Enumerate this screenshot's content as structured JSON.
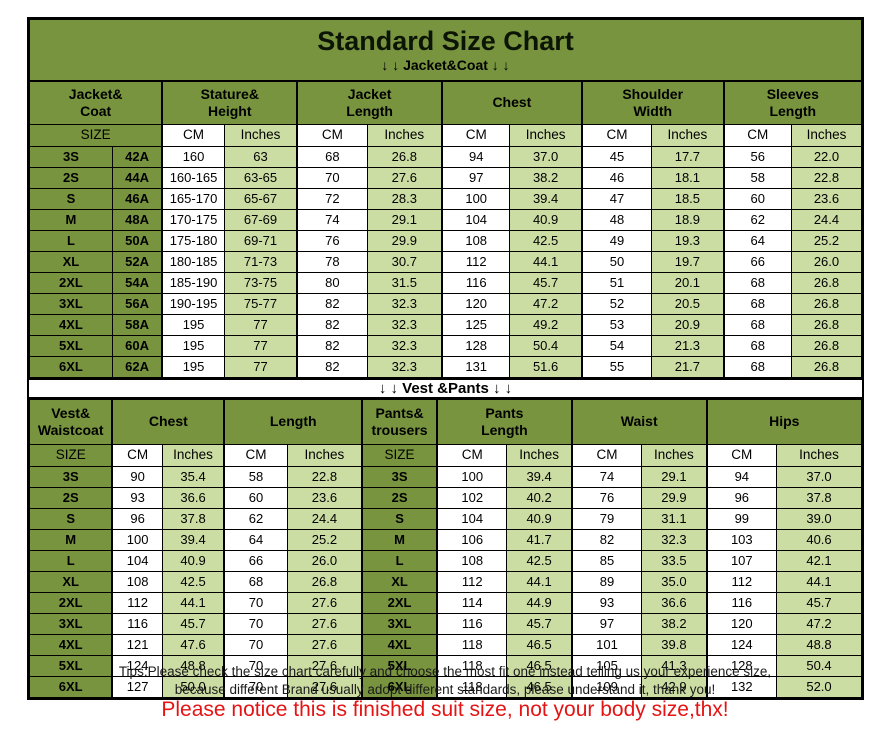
{
  "title": "Standard Size Chart",
  "jacket_section_label": "↓ ↓  Jacket&Coat ↓ ↓",
  "vest_section_label": "↓ ↓  Vest &Pants ↓ ↓",
  "colors": {
    "header_green": "#78943e",
    "light_green": "#ccdda4",
    "red_note": "#e51414",
    "border": "#000000"
  },
  "jacket_table": {
    "column_groups": [
      "Jacket&\nCoat",
      "Stature&\nHeight",
      "Jacket\nLength",
      "Chest",
      "Shoulder\nWidth",
      "Sleeves\nLength"
    ],
    "size_label": "SIZE",
    "unit_labels": [
      "CM",
      "Inches",
      "CM",
      "Inches",
      "CM",
      "Inches",
      "CM",
      "Inches",
      "CM",
      "Inches"
    ],
    "rows": [
      [
        "3S",
        "42A",
        "160",
        "63",
        "68",
        "26.8",
        "94",
        "37.0",
        "45",
        "17.7",
        "56",
        "22.0"
      ],
      [
        "2S",
        "44A",
        "160-165",
        "63-65",
        "70",
        "27.6",
        "97",
        "38.2",
        "46",
        "18.1",
        "58",
        "22.8"
      ],
      [
        "S",
        "46A",
        "165-170",
        "65-67",
        "72",
        "28.3",
        "100",
        "39.4",
        "47",
        "18.5",
        "60",
        "23.6"
      ],
      [
        "M",
        "48A",
        "170-175",
        "67-69",
        "74",
        "29.1",
        "104",
        "40.9",
        "48",
        "18.9",
        "62",
        "24.4"
      ],
      [
        "L",
        "50A",
        "175-180",
        "69-71",
        "76",
        "29.9",
        "108",
        "42.5",
        "49",
        "19.3",
        "64",
        "25.2"
      ],
      [
        "XL",
        "52A",
        "180-185",
        "71-73",
        "78",
        "30.7",
        "112",
        "44.1",
        "50",
        "19.7",
        "66",
        "26.0"
      ],
      [
        "2XL",
        "54A",
        "185-190",
        "73-75",
        "80",
        "31.5",
        "116",
        "45.7",
        "51",
        "20.1",
        "68",
        "26.8"
      ],
      [
        "3XL",
        "56A",
        "190-195",
        "75-77",
        "82",
        "32.3",
        "120",
        "47.2",
        "52",
        "20.5",
        "68",
        "26.8"
      ],
      [
        "4XL",
        "58A",
        "195",
        "77",
        "82",
        "32.3",
        "125",
        "49.2",
        "53",
        "20.9",
        "68",
        "26.8"
      ],
      [
        "5XL",
        "60A",
        "195",
        "77",
        "82",
        "32.3",
        "128",
        "50.4",
        "54",
        "21.3",
        "68",
        "26.8"
      ],
      [
        "6XL",
        "62A",
        "195",
        "77",
        "82",
        "32.3",
        "131",
        "51.6",
        "55",
        "21.7",
        "68",
        "26.8"
      ]
    ]
  },
  "vest_table": {
    "column_groups": [
      "Vest&\nWaistcoat",
      "Chest",
      "Length",
      "Pants&\ntrousers",
      "Pants\nLength",
      "Waist",
      "Hips"
    ],
    "size_label": "SIZE",
    "unit_labels": [
      "CM",
      "Inches",
      "CM",
      "Inches",
      "CM",
      "Inches",
      "CM",
      "Inches",
      "CM",
      "Inches"
    ],
    "rows": [
      [
        "3S",
        "90",
        "35.4",
        "58",
        "22.8",
        "3S",
        "100",
        "39.4",
        "74",
        "29.1",
        "94",
        "37.0"
      ],
      [
        "2S",
        "93",
        "36.6",
        "60",
        "23.6",
        "2S",
        "102",
        "40.2",
        "76",
        "29.9",
        "96",
        "37.8"
      ],
      [
        "S",
        "96",
        "37.8",
        "62",
        "24.4",
        "S",
        "104",
        "40.9",
        "79",
        "31.1",
        "99",
        "39.0"
      ],
      [
        "M",
        "100",
        "39.4",
        "64",
        "25.2",
        "M",
        "106",
        "41.7",
        "82",
        "32.3",
        "103",
        "40.6"
      ],
      [
        "L",
        "104",
        "40.9",
        "66",
        "26.0",
        "L",
        "108",
        "42.5",
        "85",
        "33.5",
        "107",
        "42.1"
      ],
      [
        "XL",
        "108",
        "42.5",
        "68",
        "26.8",
        "XL",
        "112",
        "44.1",
        "89",
        "35.0",
        "112",
        "44.1"
      ],
      [
        "2XL",
        "112",
        "44.1",
        "70",
        "27.6",
        "2XL",
        "114",
        "44.9",
        "93",
        "36.6",
        "116",
        "45.7"
      ],
      [
        "3XL",
        "116",
        "45.7",
        "70",
        "27.6",
        "3XL",
        "116",
        "45.7",
        "97",
        "38.2",
        "120",
        "47.2"
      ],
      [
        "4XL",
        "121",
        "47.6",
        "70",
        "27.6",
        "4XL",
        "118",
        "46.5",
        "101",
        "39.8",
        "124",
        "48.8"
      ],
      [
        "5XL",
        "124",
        "48.8",
        "70",
        "27.6",
        "5XL",
        "118",
        "46.5",
        "105",
        "41.3",
        "128",
        "50.4"
      ],
      [
        "6XL",
        "127",
        "50.0",
        "70",
        "27.6",
        "6XL",
        "118",
        "46.5",
        "109",
        "42.9",
        "132",
        "52.0"
      ]
    ]
  },
  "footer": {
    "tips_line1": "Tips:Please check the size chart carefully and choose the most fit one instead telling us your experience size,",
    "tips_line2": "because different Brand usually adopt different standards, please understand it, thank you!",
    "red_note": "Please notice this is finished suit size, not your body size,thx!"
  }
}
